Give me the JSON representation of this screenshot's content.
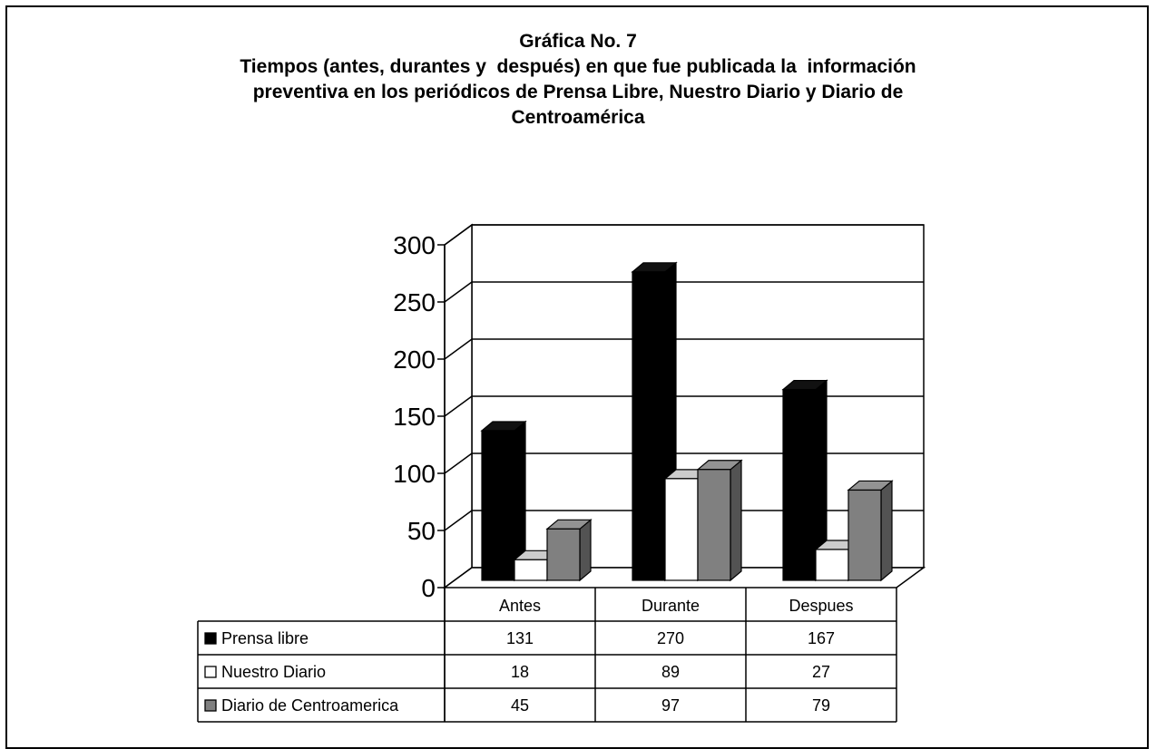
{
  "title_lines": [
    "Gráfica No. 7",
    "Tiempos (antes, durantes y  después) en que fue publicada la  información",
    "preventiva en los periódicos de Prensa Libre, Nuestro Diario y Diario de",
    "Centroamérica"
  ],
  "chart_data": {
    "type": "bar",
    "title": "Gráfica No. 7 Tiempos (antes, durantes y  después) en que fue publicada la  información preventiva en los periódicos de Prensa Libre, Nuestro Diario y Diario de Centroamérica",
    "categories": [
      "Antes",
      "Durante",
      "Despues"
    ],
    "series": [
      {
        "name": "Prensa libre",
        "values": [
          131,
          270,
          167
        ],
        "color": "#000000",
        "marker": "■"
      },
      {
        "name": "Nuestro Diario",
        "values": [
          18,
          89,
          27
        ],
        "color": "#ffffff",
        "marker": "□"
      },
      {
        "name": "Diario de Centroamerica",
        "values": [
          45,
          97,
          79
        ],
        "color": "#808080",
        "marker": "■"
      }
    ],
    "ylim": [
      0,
      300
    ],
    "yticks": [
      0,
      50,
      100,
      150,
      200,
      250,
      300
    ],
    "grid": true,
    "three_d": true,
    "legend": "data-table"
  }
}
